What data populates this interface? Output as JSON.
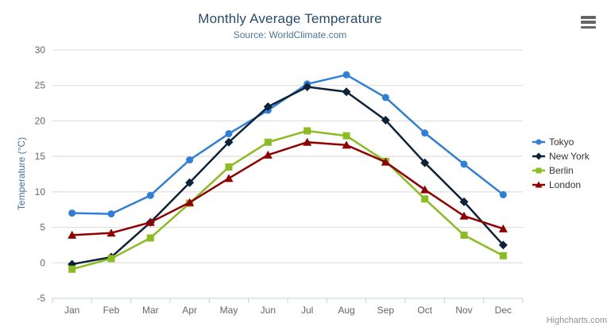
{
  "header": {
    "menu_tooltip": "Chart context menu"
  },
  "credit": "Highcharts.com",
  "colors": {
    "background": "#ffffff",
    "title_color": "#274b6d",
    "subtitle_color": "#4d759e",
    "axis_label_color": "#666666",
    "yaxis_title_color": "#4572a7",
    "gridline_color": "#d8d8d8",
    "axis_line_color": "#c0d0e0",
    "legend_text_color": "#333333",
    "credit_color": "#909090",
    "menu_icon_color": "#666666"
  },
  "chart_data": {
    "type": "line",
    "title": "Monthly Average Temperature",
    "subtitle": "Source: WorldClimate.com",
    "xlabel": "",
    "ylabel": "Temperature (°C)",
    "ylim": [
      -5,
      30
    ],
    "ytick_step": 5,
    "grid": true,
    "legend_position": "right",
    "categories": [
      "Jan",
      "Feb",
      "Mar",
      "Apr",
      "May",
      "Jun",
      "Jul",
      "Aug",
      "Sep",
      "Oct",
      "Nov",
      "Dec"
    ],
    "series": [
      {
        "name": "Tokyo",
        "color": "#2f7ed8",
        "marker": "circle",
        "values": [
          7.0,
          6.9,
          9.5,
          14.5,
          18.2,
          21.5,
          25.2,
          26.5,
          23.3,
          18.3,
          13.9,
          9.6
        ]
      },
      {
        "name": "New York",
        "color": "#0d233a",
        "marker": "diamond",
        "values": [
          -0.2,
          0.8,
          5.7,
          11.3,
          17.0,
          22.0,
          24.8,
          24.1,
          20.1,
          14.1,
          8.6,
          2.5
        ]
      },
      {
        "name": "Berlin",
        "color": "#8bbc21",
        "marker": "square",
        "values": [
          -0.9,
          0.6,
          3.5,
          8.4,
          13.5,
          17.0,
          18.6,
          17.9,
          14.3,
          9.0,
          3.9,
          1.0
        ]
      },
      {
        "name": "London",
        "color": "#910000",
        "marker": "triangle",
        "values": [
          3.9,
          4.2,
          5.7,
          8.5,
          11.9,
          15.2,
          17.0,
          16.6,
          14.2,
          10.3,
          6.6,
          4.8
        ]
      }
    ]
  }
}
